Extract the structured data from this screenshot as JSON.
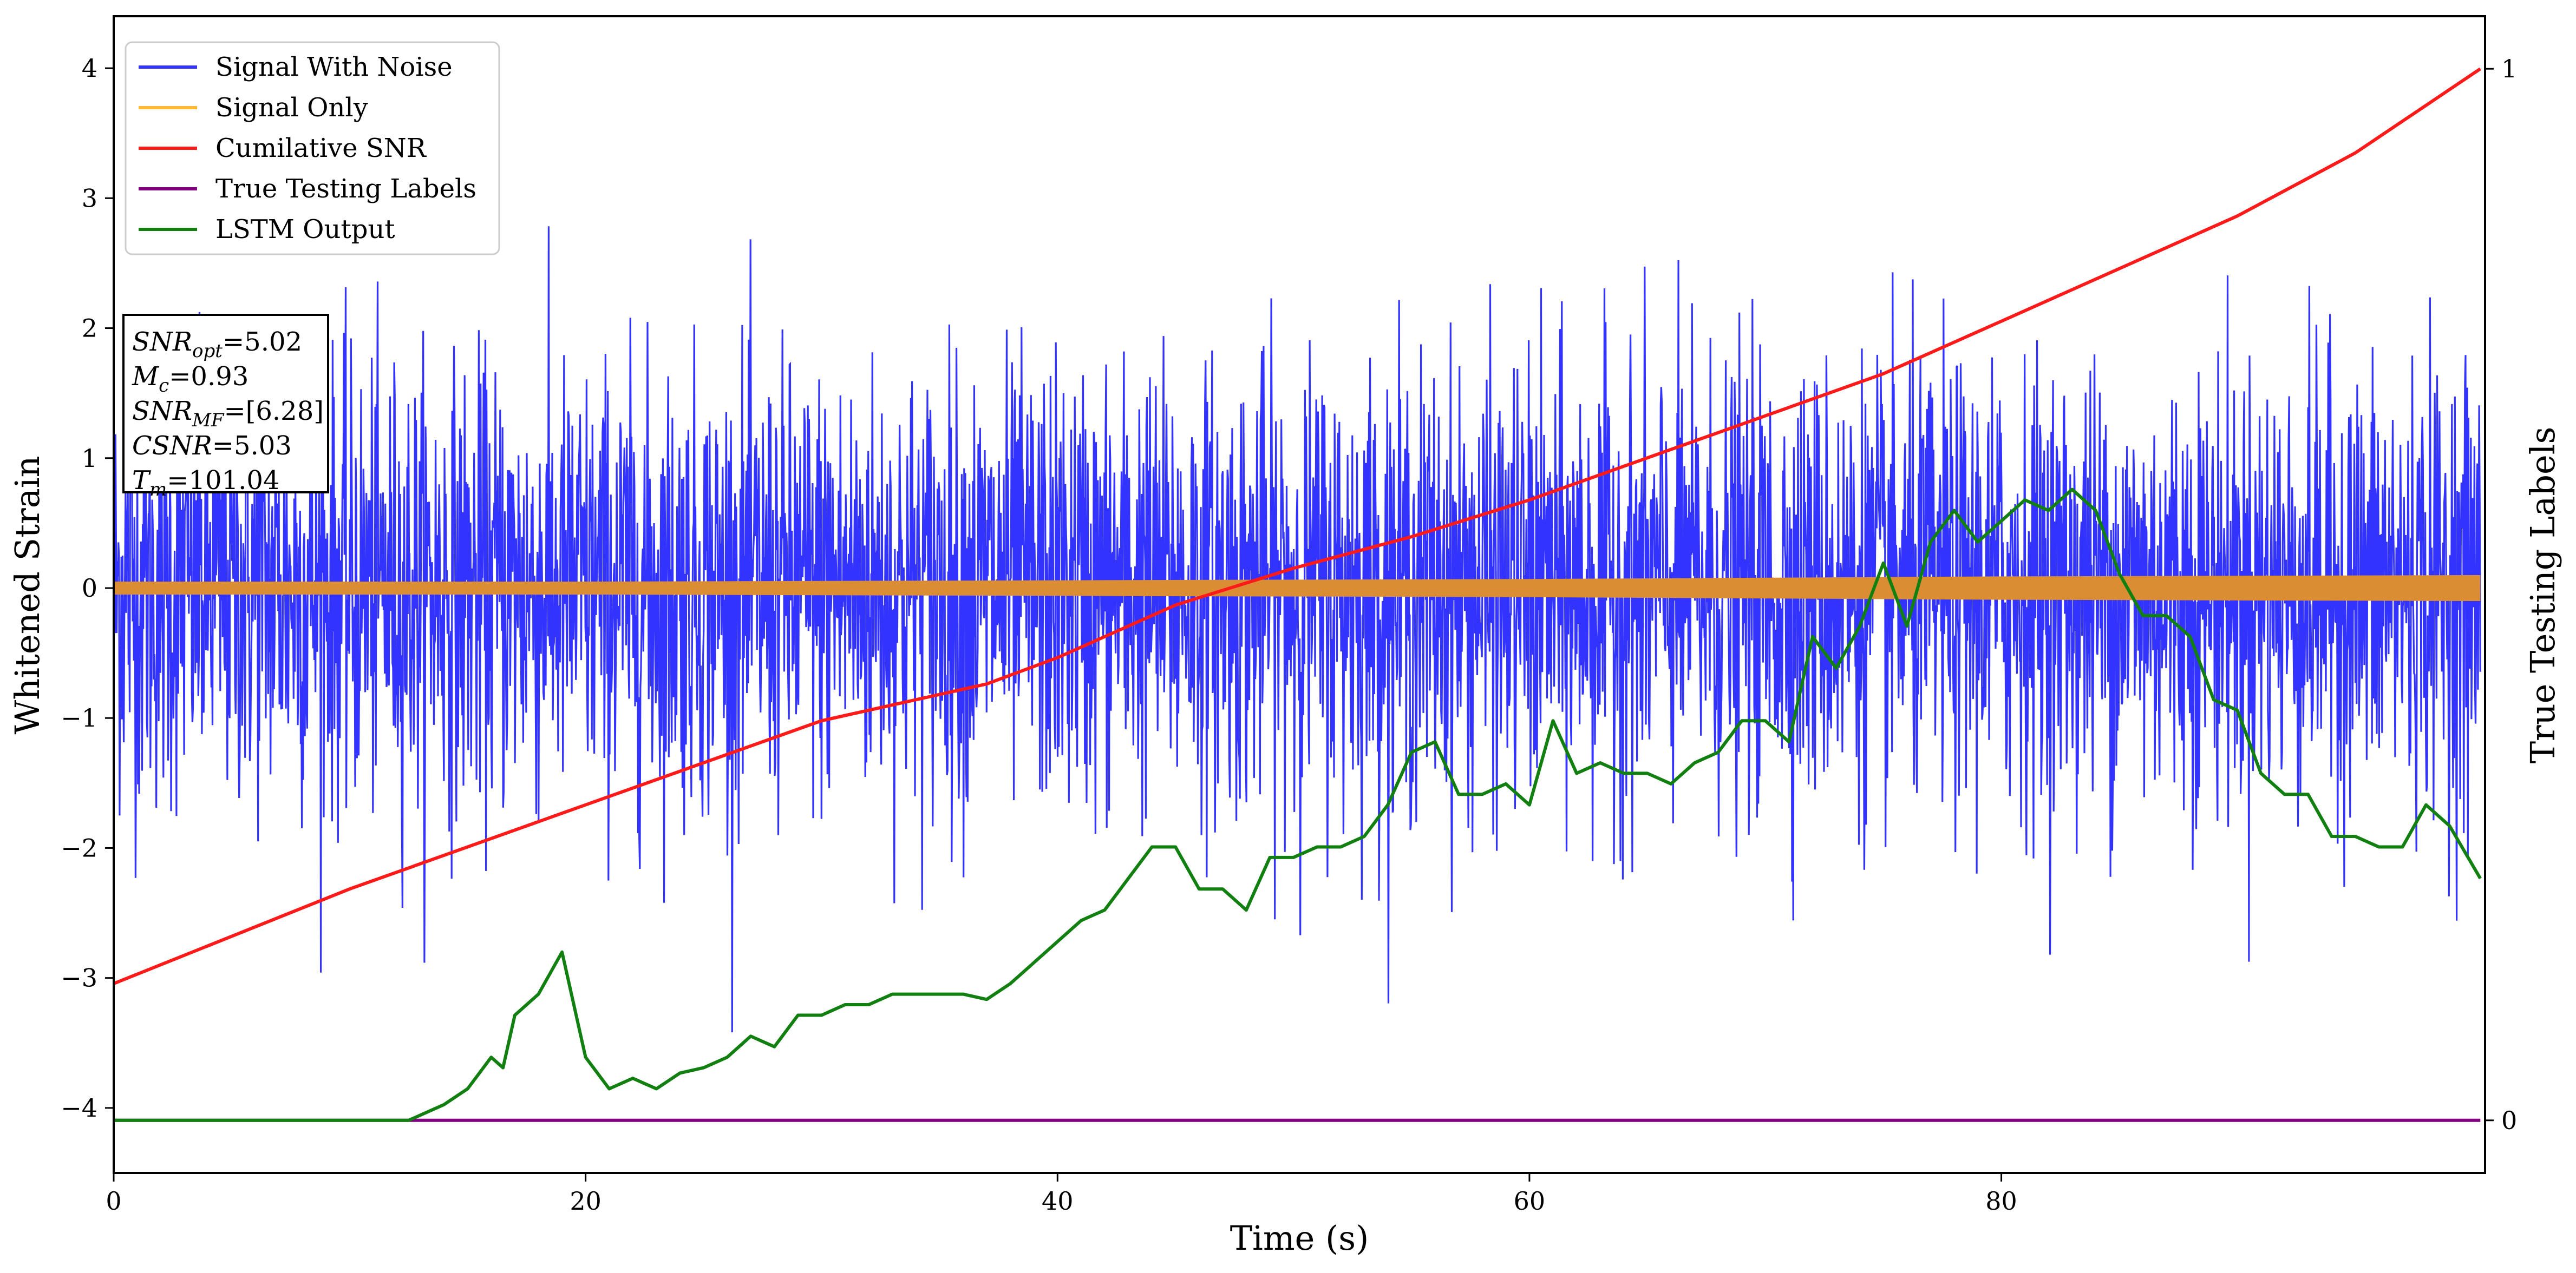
{
  "chart_data": {
    "type": "line",
    "xlabel": "Time (s)",
    "ylabel": "Whitened Strain",
    "y2label": "True Testing Labels",
    "xlim": [
      0,
      100.5
    ],
    "ylim": [
      -4.5,
      4.4
    ],
    "y2lim": [
      -0.05,
      1.05
    ],
    "xticks": [
      0,
      20,
      40,
      60,
      80
    ],
    "yticks": [
      -4,
      -3,
      -2,
      -1,
      0,
      1,
      2,
      3,
      4
    ],
    "y2ticks": [
      0,
      1
    ],
    "grid": false,
    "legend_position": "top-left",
    "colors": {
      "noise": "#3333ff",
      "signal": "#db8d34",
      "signal_legend": "#ffb833",
      "csnr": "#ff1a1a",
      "labels": "#800080",
      "lstm": "#118011"
    },
    "series": [
      {
        "name": "Signal With Noise",
        "description_type": "dense-noise",
        "sample_count": 4000,
        "std": 0.85,
        "approx_range": [
          -3.45,
          3.45
        ],
        "x_range": [
          0,
          100.3
        ]
      },
      {
        "name": "Signal Only",
        "description_type": "thin-band",
        "x": [
          0,
          20,
          40,
          60,
          80,
          100.3
        ],
        "upper": [
          0.05,
          0.05,
          0.06,
          0.07,
          0.09,
          0.1
        ],
        "lower": [
          -0.05,
          -0.05,
          -0.06,
          -0.07,
          -0.09,
          -0.1
        ]
      },
      {
        "name": "Cumilative SNR",
        "axis": "y2",
        "x": [
          0,
          10,
          20,
          30,
          33,
          37,
          40,
          45,
          50,
          55,
          60,
          65,
          70,
          75,
          80,
          85,
          90,
          95,
          100.3
        ],
        "y": [
          0.13,
          0.22,
          0.3,
          0.38,
          0.395,
          0.415,
          0.44,
          0.49,
          0.525,
          0.555,
          0.59,
          0.63,
          0.67,
          0.71,
          0.76,
          0.81,
          0.86,
          0.92,
          1.0
        ]
      },
      {
        "name": "True Testing Labels",
        "axis": "y2",
        "x": [
          0,
          100.3
        ],
        "y": [
          0,
          0
        ]
      },
      {
        "name": "LSTM Output",
        "axis": "y2",
        "x": [
          0,
          12.5,
          13,
          14,
          15,
          16,
          16.5,
          17,
          18,
          19,
          20,
          21,
          22,
          23,
          24,
          25,
          26,
          27,
          28,
          29,
          30,
          31,
          32,
          33,
          34,
          35,
          36,
          37,
          38,
          39,
          40,
          41,
          42,
          43,
          44,
          45,
          46,
          47,
          48,
          49,
          50,
          51,
          52,
          53,
          54,
          55,
          56,
          57,
          58,
          59,
          60,
          61,
          62,
          63,
          64,
          65,
          66,
          67,
          68,
          69,
          70,
          71,
          72,
          73,
          74,
          75,
          76,
          77,
          78,
          79,
          80,
          81,
          82,
          83,
          84,
          85,
          86,
          87,
          88,
          89,
          90,
          91,
          92,
          93,
          94,
          95,
          96,
          97,
          98,
          99,
          100.3
        ],
        "y": [
          0,
          0,
          0.005,
          0.015,
          0.03,
          0.06,
          0.05,
          0.1,
          0.12,
          0.16,
          0.06,
          0.03,
          0.04,
          0.03,
          0.045,
          0.05,
          0.06,
          0.08,
          0.07,
          0.1,
          0.1,
          0.11,
          0.11,
          0.12,
          0.12,
          0.12,
          0.12,
          0.115,
          0.13,
          0.15,
          0.17,
          0.19,
          0.2,
          0.23,
          0.26,
          0.26,
          0.22,
          0.22,
          0.2,
          0.25,
          0.25,
          0.26,
          0.26,
          0.27,
          0.3,
          0.35,
          0.36,
          0.31,
          0.31,
          0.32,
          0.3,
          0.38,
          0.33,
          0.34,
          0.33,
          0.33,
          0.32,
          0.34,
          0.35,
          0.38,
          0.38,
          0.36,
          0.46,
          0.43,
          0.47,
          0.53,
          0.47,
          0.55,
          0.58,
          0.55,
          0.57,
          0.59,
          0.58,
          0.6,
          0.58,
          0.52,
          0.48,
          0.48,
          0.46,
          0.4,
          0.39,
          0.33,
          0.31,
          0.31,
          0.27,
          0.27,
          0.26,
          0.26,
          0.3,
          0.28,
          0.23
        ]
      }
    ],
    "annotations": [
      {
        "base": "SNR",
        "sub": "opt",
        "value": "=5.02"
      },
      {
        "base": "M",
        "sub": "c",
        "value": "=0.93"
      },
      {
        "base": "SNR",
        "sub": "MF",
        "value": "=[6.28]"
      },
      {
        "base": "CSNR",
        "sub": "",
        "value": "=5.03"
      },
      {
        "base": "T",
        "sub": "m",
        "value": "=101.04"
      }
    ]
  }
}
